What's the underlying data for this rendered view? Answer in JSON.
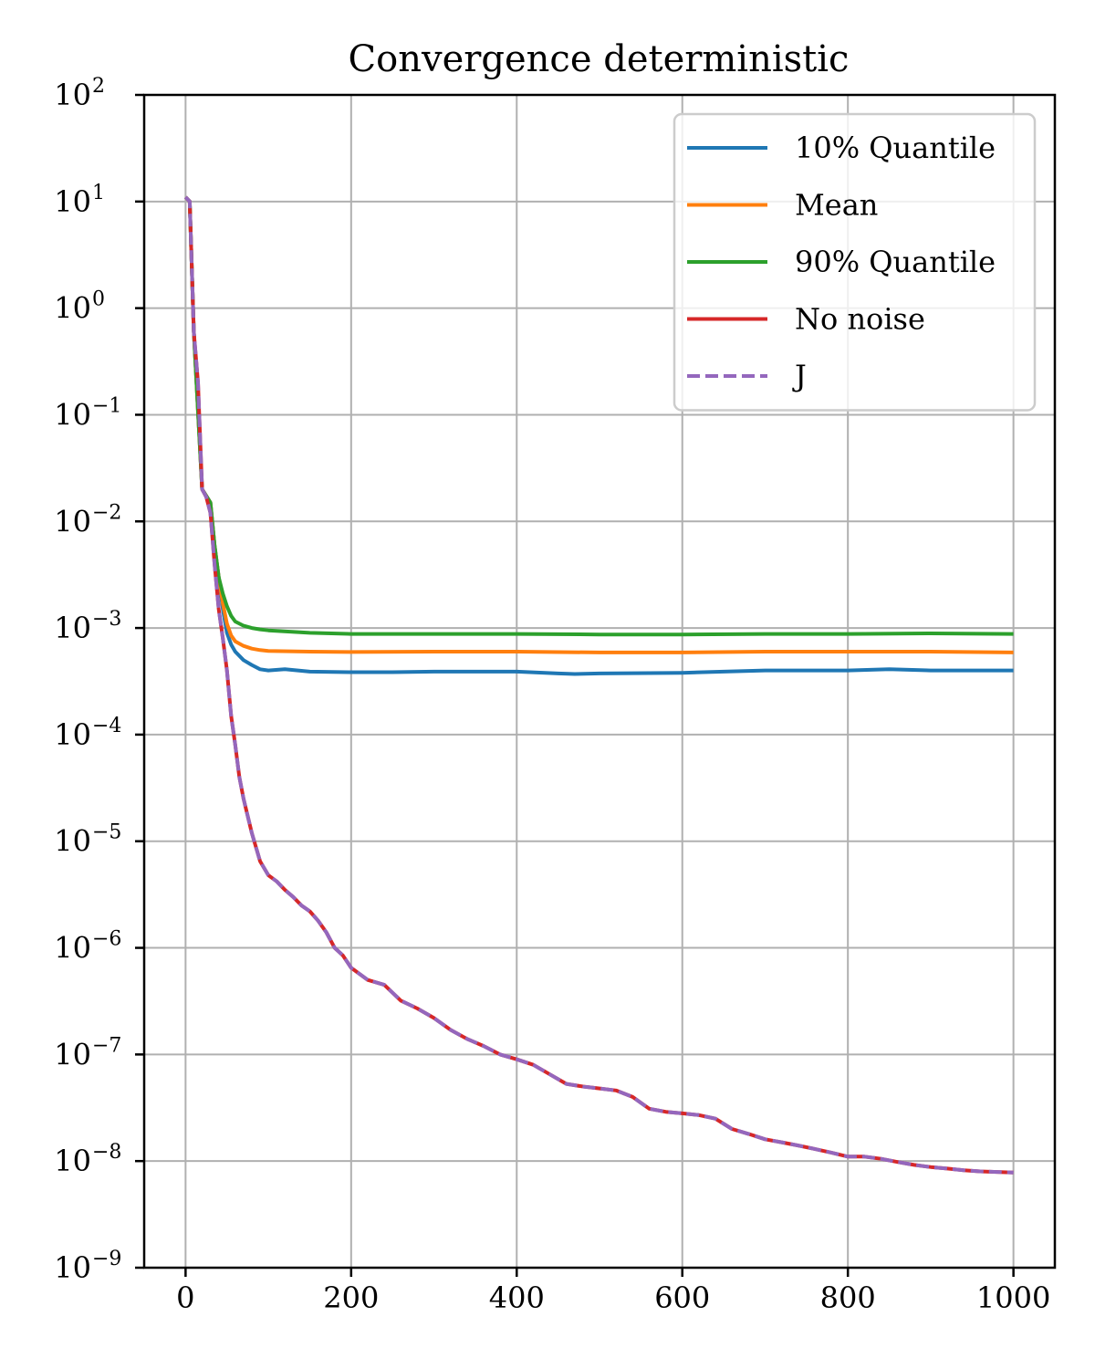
{
  "chart_data": {
    "type": "line",
    "title": "Convergence deterministic",
    "xlabel": "",
    "ylabel": "",
    "xlim": [
      -50,
      1050
    ],
    "ylim": [
      1e-09,
      100
    ],
    "yscale": "log",
    "grid": true,
    "legend_position": "top-right",
    "x_ticks": [
      "0",
      "200",
      "400",
      "600",
      "800",
      "1000"
    ],
    "x_tick_values": [
      0,
      200,
      400,
      600,
      800,
      1000
    ],
    "y_tick_exponents": [
      2,
      1,
      0,
      -1,
      -2,
      -3,
      -4,
      -5,
      -6,
      -7,
      -8,
      -9
    ],
    "y_tick_base": "10",
    "series": [
      {
        "name": "10% Quantile",
        "color": "#1f77b4",
        "style": "solid",
        "x": [
          0,
          5,
          10,
          20,
          30,
          35,
          40,
          45,
          50,
          55,
          60,
          70,
          80,
          90,
          100,
          120,
          150,
          200,
          250,
          300,
          350,
          400,
          450,
          470,
          500,
          600,
          650,
          700,
          800,
          850,
          900,
          1000
        ],
        "y": [
          11,
          10,
          0.6,
          0.02,
          0.015,
          0.006,
          0.003,
          0.0015,
          0.0009,
          0.0007,
          0.0006,
          0.0005,
          0.00045,
          0.00041,
          0.0004,
          0.00041,
          0.00039,
          0.000385,
          0.000385,
          0.00039,
          0.00039,
          0.00039,
          0.000375,
          0.00037,
          0.000375,
          0.00038,
          0.00039,
          0.0004,
          0.0004,
          0.00041,
          0.0004,
          0.0004
        ]
      },
      {
        "name": "Mean",
        "color": "#ff7f0e",
        "style": "solid",
        "x": [
          0,
          5,
          10,
          20,
          30,
          35,
          40,
          45,
          50,
          55,
          60,
          70,
          80,
          90,
          100,
          150,
          200,
          300,
          400,
          500,
          600,
          700,
          800,
          900,
          1000
        ],
        "y": [
          11,
          10,
          0.6,
          0.02,
          0.015,
          0.006,
          0.003,
          0.0017,
          0.0011,
          0.00085,
          0.00075,
          0.00068,
          0.00064,
          0.00062,
          0.00061,
          0.0006,
          0.000595,
          0.0006,
          0.0006,
          0.00059,
          0.00059,
          0.0006,
          0.0006,
          0.0006,
          0.00059
        ]
      },
      {
        "name": "90% Quantile",
        "color": "#2ca02c",
        "style": "solid",
        "x": [
          0,
          5,
          10,
          20,
          30,
          35,
          40,
          45,
          50,
          55,
          60,
          70,
          80,
          90,
          100,
          150,
          200,
          300,
          400,
          500,
          600,
          700,
          800,
          900,
          1000
        ],
        "y": [
          11,
          10,
          0.6,
          0.02,
          0.015,
          0.006,
          0.003,
          0.0021,
          0.0016,
          0.0013,
          0.00115,
          0.00105,
          0.001,
          0.00097,
          0.00095,
          0.0009,
          0.00088,
          0.00088,
          0.00088,
          0.00087,
          0.00087,
          0.00088,
          0.00088,
          0.00089,
          0.00088
        ]
      },
      {
        "name": "No noise",
        "color": "#d62728",
        "style": "solid",
        "x": [
          0,
          5,
          10,
          15,
          20,
          25,
          30,
          35,
          40,
          45,
          50,
          55,
          60,
          65,
          70,
          80,
          90,
          100,
          110,
          120,
          130,
          140,
          150,
          160,
          170,
          180,
          190,
          200,
          220,
          240,
          260,
          280,
          300,
          320,
          340,
          360,
          380,
          400,
          420,
          440,
          460,
          480,
          500,
          520,
          540,
          560,
          580,
          600,
          620,
          640,
          660,
          680,
          700,
          720,
          740,
          760,
          780,
          800,
          820,
          840,
          860,
          880,
          900,
          920,
          940,
          960,
          980,
          1000
        ],
        "y": [
          11,
          10,
          0.6,
          0.2,
          0.02,
          0.017,
          0.012,
          0.004,
          0.0015,
          0.0008,
          0.0004,
          0.00015,
          8e-05,
          4e-05,
          2.5e-05,
          1.2e-05,
          6.5e-06,
          4.8e-06,
          4.2e-06,
          3.5e-06,
          3e-06,
          2.5e-06,
          2.2e-06,
          1.8e-06,
          1.4e-06,
          1e-06,
          8.5e-07,
          6.5e-07,
          5e-07,
          4.5e-07,
          3.2e-07,
          2.7e-07,
          2.2e-07,
          1.7e-07,
          1.4e-07,
          1.2e-07,
          1e-07,
          9e-08,
          8e-08,
          6.5e-08,
          5.3e-08,
          5e-08,
          4.8e-08,
          4.6e-08,
          4e-08,
          3.1e-08,
          2.9e-08,
          2.8e-08,
          2.7e-08,
          2.5e-08,
          2e-08,
          1.8e-08,
          1.6e-08,
          1.5e-08,
          1.4e-08,
          1.3e-08,
          1.2e-08,
          1.1e-08,
          1.1e-08,
          1.05e-08,
          9.8e-09,
          9.2e-09,
          8.8e-09,
          8.5e-09,
          8.2e-09,
          8e-09,
          7.9e-09,
          7.8e-09
        ]
      },
      {
        "name": "J",
        "color": "#9467bd",
        "style": "dashed",
        "x": [
          0,
          5,
          10,
          15,
          20,
          25,
          30,
          35,
          40,
          45,
          50,
          55,
          60,
          65,
          70,
          80,
          90,
          100,
          110,
          120,
          130,
          140,
          150,
          160,
          170,
          180,
          190,
          200,
          220,
          240,
          260,
          280,
          300,
          320,
          340,
          360,
          380,
          400,
          420,
          440,
          460,
          480,
          500,
          520,
          540,
          560,
          580,
          600,
          620,
          640,
          660,
          680,
          700,
          720,
          740,
          760,
          780,
          800,
          820,
          840,
          860,
          880,
          900,
          920,
          940,
          960,
          980,
          1000
        ],
        "y": [
          11,
          10,
          0.6,
          0.2,
          0.02,
          0.017,
          0.012,
          0.004,
          0.0015,
          0.0008,
          0.0004,
          0.00015,
          8e-05,
          4e-05,
          2.5e-05,
          1.2e-05,
          6.5e-06,
          4.8e-06,
          4.2e-06,
          3.5e-06,
          3e-06,
          2.5e-06,
          2.2e-06,
          1.8e-06,
          1.4e-06,
          1e-06,
          8.5e-07,
          6.5e-07,
          5e-07,
          4.5e-07,
          3.2e-07,
          2.7e-07,
          2.2e-07,
          1.7e-07,
          1.4e-07,
          1.2e-07,
          1e-07,
          9e-08,
          8e-08,
          6.5e-08,
          5.3e-08,
          5e-08,
          4.8e-08,
          4.6e-08,
          4e-08,
          3.1e-08,
          2.9e-08,
          2.8e-08,
          2.7e-08,
          2.5e-08,
          2e-08,
          1.8e-08,
          1.6e-08,
          1.5e-08,
          1.4e-08,
          1.3e-08,
          1.2e-08,
          1.1e-08,
          1.1e-08,
          1.05e-08,
          9.8e-09,
          9.2e-09,
          8.8e-09,
          8.5e-09,
          8.2e-09,
          8e-09,
          7.9e-09,
          7.8e-09
        ]
      }
    ]
  }
}
